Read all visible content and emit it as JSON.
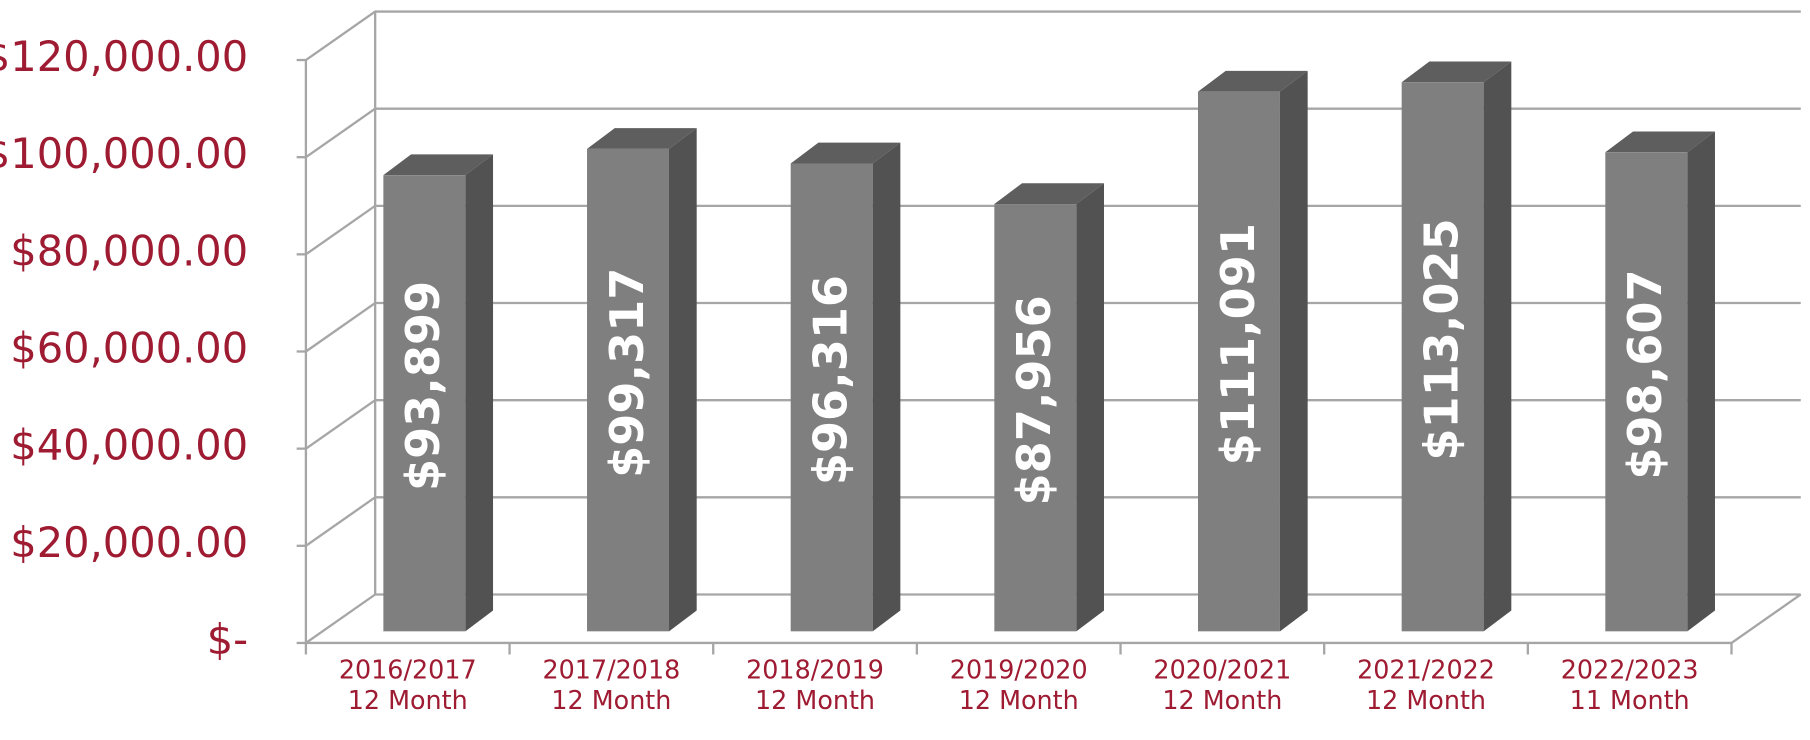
{
  "chart_data": {
    "type": "bar3d",
    "categories": [
      "2016/2017\n12 Month",
      "2017/2018\n12 Month",
      "2018/2019\n12 Month",
      "2019/2020\n12 Month",
      "2020/2021\n12 Month",
      "2021/2022\n12 Month",
      "2022/2023\n11 Month"
    ],
    "values": [
      93899,
      99317,
      96316,
      87956,
      111091,
      113025,
      98607
    ],
    "value_labels": [
      "$93,899",
      "$99,317",
      "$96,316",
      "$87,956",
      "$111,091",
      "$113,025",
      "$98,607"
    ],
    "color": "#7f7f7f",
    "ylim": [
      0,
      120000
    ],
    "yticks": [
      {
        "value": 0,
        "label": "$-"
      },
      {
        "value": 20000,
        "label": "$20,000.00"
      },
      {
        "value": 40000,
        "label": "$40,000.00"
      },
      {
        "value": 60000,
        "label": "$60,000.00"
      },
      {
        "value": 80000,
        "label": "$80,000.00"
      },
      {
        "value": 100000,
        "label": "$100,000.00"
      },
      {
        "value": 120000,
        "label": "$120,000.00"
      }
    ],
    "grid": true
  }
}
